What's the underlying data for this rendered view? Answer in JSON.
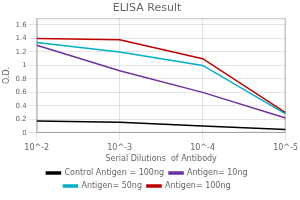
{
  "chart_data": {
    "type": "line",
    "title": "ELISA Result",
    "xlabel": "Serial Dilutions  of Antibody",
    "ylabel": "O.D.",
    "x": [
      0.01,
      0.001,
      0.0001,
      1e-05
    ],
    "series": [
      {
        "name": "Control Antigen = 100ng",
        "color": "#000000",
        "values": [
          0.175,
          0.155,
          0.1,
          0.05
        ]
      },
      {
        "name": "Antigen= 10ng",
        "color": "#7030a0",
        "values": [
          1.3,
          0.92,
          0.6,
          0.22
        ]
      },
      {
        "name": "Antigen= 50ng",
        "color": "#00b0c8",
        "values": [
          1.34,
          1.2,
          1.0,
          0.28
        ]
      },
      {
        "name": "Antigen= 100ng",
        "color": "#c00000",
        "values": [
          1.4,
          1.38,
          1.1,
          0.3
        ]
      }
    ],
    "log": "x",
    "xlim": [
      0.01,
      1e-05
    ],
    "xticks": [
      {
        "value": 0.01,
        "label": "10^-2"
      },
      {
        "value": 0.001,
        "label": "10^-3"
      },
      {
        "value": 0.0001,
        "label": "10^-4"
      },
      {
        "value": 1e-05,
        "label": "10^-5"
      }
    ],
    "ylim": [
      0,
      1.7
    ],
    "yticks": [
      0,
      0.2,
      0.4,
      0.6,
      0.8,
      1.0,
      1.2,
      1.4,
      1.6
    ],
    "grid": true,
    "legend": "bottom"
  }
}
